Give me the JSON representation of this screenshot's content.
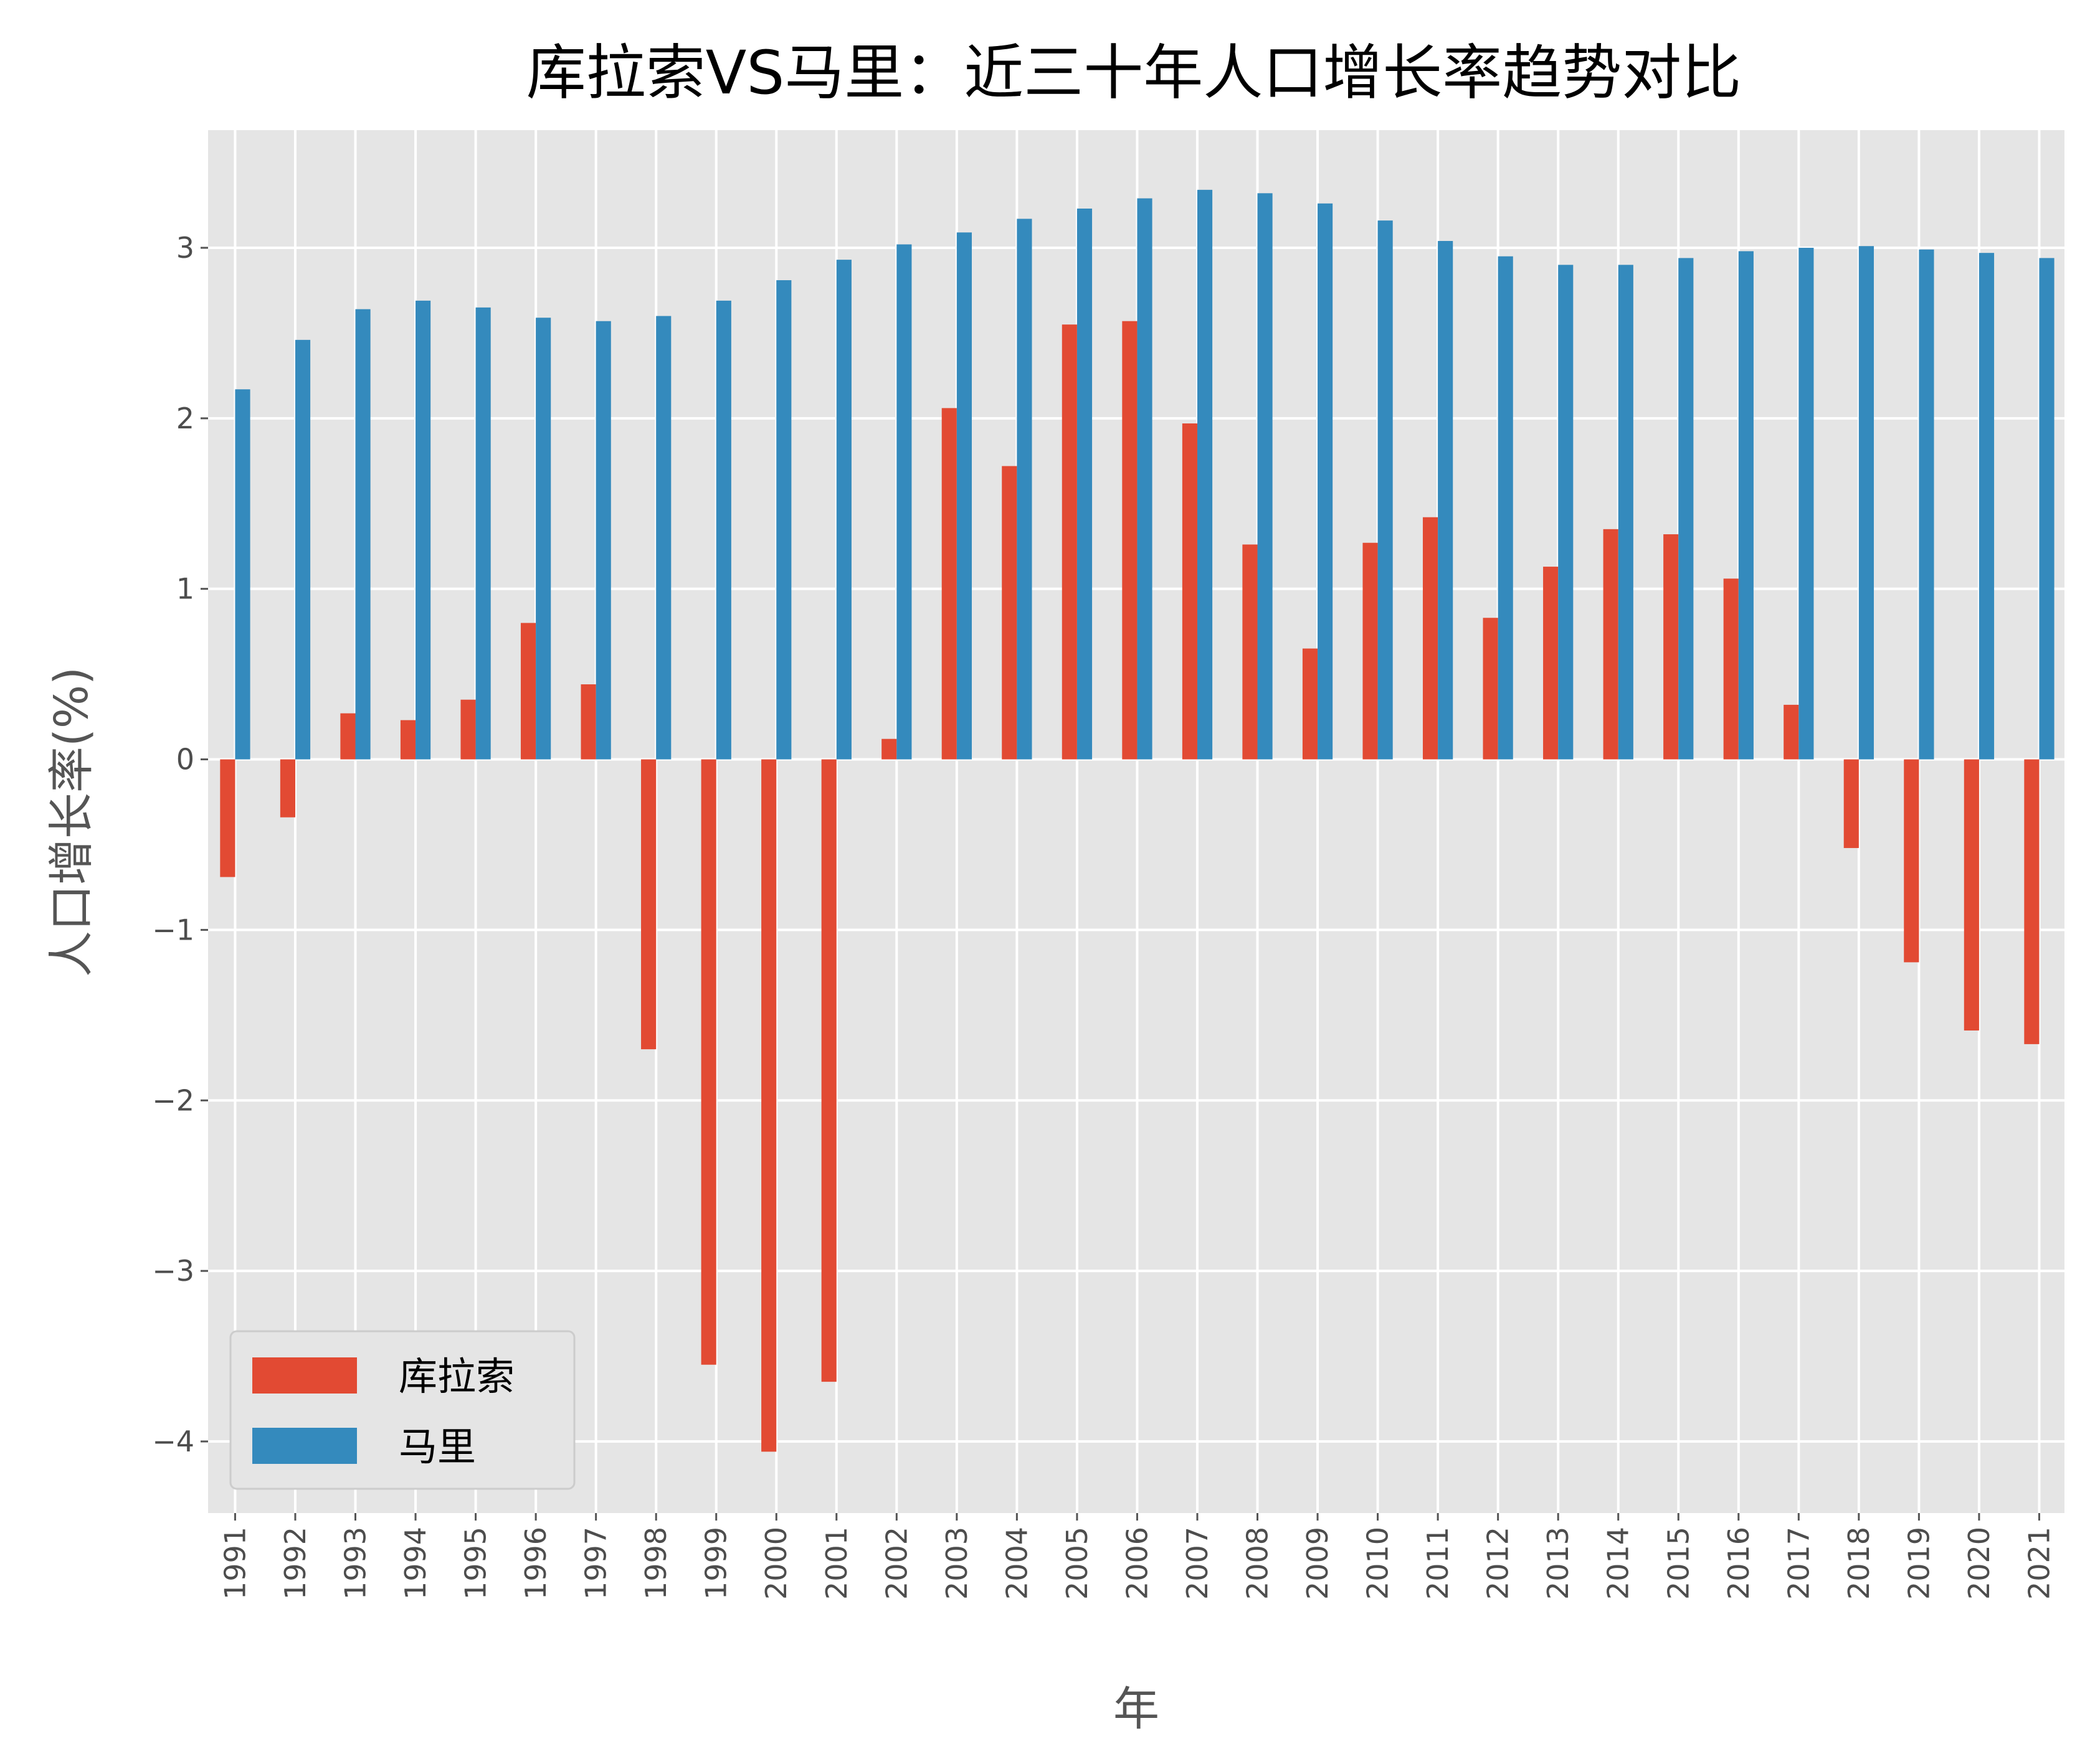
{
  "chart_data": {
    "type": "bar",
    "title": "库拉索VS马里：近三十年人口增长率趋势对比",
    "xlabel": "年",
    "ylabel": "人口增长率(%)",
    "ylim": [
      -4.42,
      3.69
    ],
    "yticks": [
      -4,
      -3,
      -2,
      -1,
      0,
      1,
      2,
      3
    ],
    "grid": true,
    "legend_position": "lower-left",
    "categories": [
      "1991",
      "1992",
      "1993",
      "1994",
      "1995",
      "1996",
      "1997",
      "1998",
      "1999",
      "2000",
      "2001",
      "2002",
      "2003",
      "2004",
      "2005",
      "2006",
      "2007",
      "2008",
      "2009",
      "2010",
      "2011",
      "2012",
      "2013",
      "2014",
      "2015",
      "2016",
      "2017",
      "2018",
      "2019",
      "2020",
      "2021"
    ],
    "series": [
      {
        "name": "库拉索",
        "color": "#E24A33",
        "values": [
          -0.69,
          -0.34,
          0.27,
          0.23,
          0.35,
          0.8,
          0.44,
          -1.7,
          -3.55,
          -4.06,
          -3.65,
          0.12,
          2.06,
          1.72,
          2.55,
          2.57,
          1.97,
          1.26,
          0.65,
          1.27,
          1.42,
          0.83,
          1.13,
          1.35,
          1.32,
          1.06,
          0.32,
          -0.52,
          -1.19,
          -1.59,
          -1.67
        ]
      },
      {
        "name": "马里",
        "color": "#348ABD",
        "values": [
          2.17,
          2.46,
          2.64,
          2.69,
          2.65,
          2.59,
          2.57,
          2.6,
          2.69,
          2.81,
          2.93,
          3.02,
          3.09,
          3.17,
          3.23,
          3.29,
          3.34,
          3.32,
          3.26,
          3.16,
          3.04,
          2.95,
          2.9,
          2.9,
          2.94,
          2.98,
          3.0,
          3.01,
          2.99,
          2.97,
          2.94
        ]
      }
    ]
  }
}
